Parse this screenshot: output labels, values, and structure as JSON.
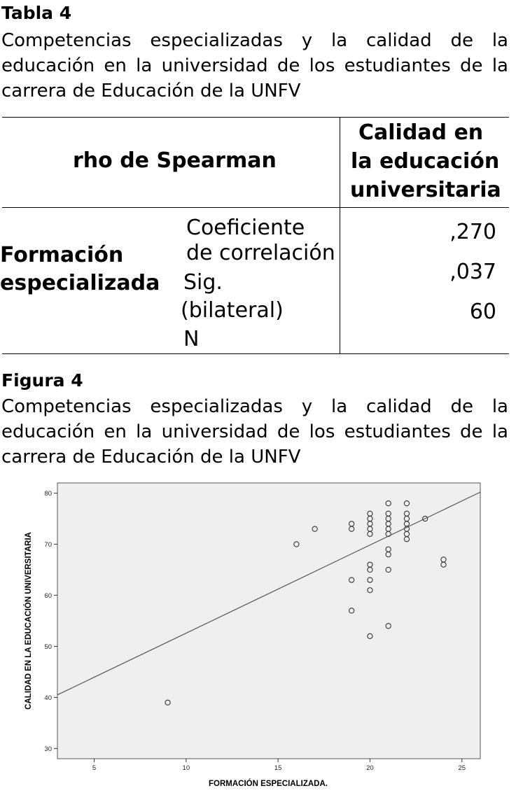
{
  "table": {
    "label": "Tabla 4",
    "caption": "Competencias especializadas y la calidad de la educación en la universidad de los estudiantes de la carrera de Educación de la UNFV",
    "header_left": "rho de Spearman",
    "header_right": [
      "Calidad en",
      "la educación",
      "universitaria"
    ],
    "row_group": [
      "Formación",
      "especializada"
    ],
    "stats": [
      "Coeficiente",
      "de correlación",
      "Sig.",
      "(bilateral)",
      "N"
    ],
    "values": [
      ",270",
      ",037",
      "60"
    ]
  },
  "figure": {
    "label": "Figura 4",
    "caption": "Competencias especializadas y la calidad de la educación en la universidad de los estudiantes de la carrera de Educación de la UNFV"
  },
  "chart_data": {
    "type": "scatter",
    "title": "",
    "xlabel": "FORMACIÓN ESPECIALIZADA.",
    "ylabel": "CALIDAD EN LA EDUCACIÓN UNIVERSITARIA",
    "xlim": [
      3,
      26
    ],
    "ylim": [
      28,
      82
    ],
    "xticks": [
      5,
      10,
      15,
      20,
      25
    ],
    "yticks": [
      30,
      40,
      50,
      60,
      70,
      80
    ],
    "grid": false,
    "legend": "none",
    "plot_background": "#efefef",
    "marker_color": "#333333",
    "points": [
      [
        9,
        39
      ],
      [
        16,
        70
      ],
      [
        17,
        73
      ],
      [
        19,
        74
      ],
      [
        19,
        73
      ],
      [
        19,
        63
      ],
      [
        19,
        57
      ],
      [
        20,
        76
      ],
      [
        20,
        75
      ],
      [
        20,
        74
      ],
      [
        20,
        73
      ],
      [
        20,
        72
      ],
      [
        20,
        66
      ],
      [
        20,
        65
      ],
      [
        20,
        63
      ],
      [
        20,
        61
      ],
      [
        20,
        52
      ],
      [
        21,
        78
      ],
      [
        21,
        76
      ],
      [
        21,
        75
      ],
      [
        21,
        74
      ],
      [
        21,
        73
      ],
      [
        21,
        72
      ],
      [
        21,
        69
      ],
      [
        21,
        68
      ],
      [
        21,
        65
      ],
      [
        21,
        54
      ],
      [
        22,
        78
      ],
      [
        22,
        76
      ],
      [
        22,
        75
      ],
      [
        22,
        74
      ],
      [
        22,
        73
      ],
      [
        22,
        72
      ],
      [
        22,
        71
      ],
      [
        23,
        75
      ],
      [
        24,
        67
      ],
      [
        24,
        66
      ]
    ],
    "fit_line": {
      "x": [
        3,
        26
      ],
      "y": [
        40.5,
        80.2
      ]
    }
  }
}
